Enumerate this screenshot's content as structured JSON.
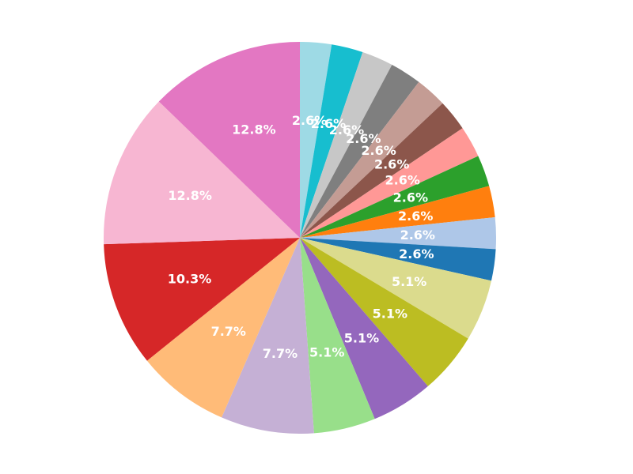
{
  "chart_data": {
    "type": "pie",
    "title": "",
    "start_angle_deg": 90,
    "direction": "clockwise",
    "legend": "none",
    "slices": [
      {
        "label": "2.6%",
        "value": 2.6,
        "color": "#9edae5"
      },
      {
        "label": "2.6%",
        "value": 2.6,
        "color": "#17becf"
      },
      {
        "label": "2.6%",
        "value": 2.6,
        "color": "#c7c7c7"
      },
      {
        "label": "2.6%",
        "value": 2.6,
        "color": "#7f7f7f"
      },
      {
        "label": "2.6%",
        "value": 2.6,
        "color": "#c49c94"
      },
      {
        "label": "2.6%",
        "value": 2.6,
        "color": "#8c564b"
      },
      {
        "label": "2.6%",
        "value": 2.6,
        "color": "#ff9896"
      },
      {
        "label": "2.6%",
        "value": 2.6,
        "color": "#2ca02c"
      },
      {
        "label": "2.6%",
        "value": 2.6,
        "color": "#ff7f0e"
      },
      {
        "label": "2.6%",
        "value": 2.6,
        "color": "#aec7e8"
      },
      {
        "label": "2.6%",
        "value": 2.6,
        "color": "#1f77b4"
      },
      {
        "label": "5.1%",
        "value": 5.1,
        "color": "#dbdb8d"
      },
      {
        "label": "5.1%",
        "value": 5.1,
        "color": "#bcbd22"
      },
      {
        "label": "5.1%",
        "value": 5.1,
        "color": "#9467bd"
      },
      {
        "label": "5.1%",
        "value": 5.1,
        "color": "#98df8a"
      },
      {
        "label": "7.7%",
        "value": 7.7,
        "color": "#c5b0d5"
      },
      {
        "label": "7.7%",
        "value": 7.7,
        "color": "#ffbb78"
      },
      {
        "label": "10.3%",
        "value": 10.3,
        "color": "#d62728"
      },
      {
        "label": "12.8%",
        "value": 12.8,
        "color": "#f7b6d2"
      },
      {
        "label": "12.8%",
        "value": 12.8,
        "color": "#e377c2"
      }
    ]
  }
}
